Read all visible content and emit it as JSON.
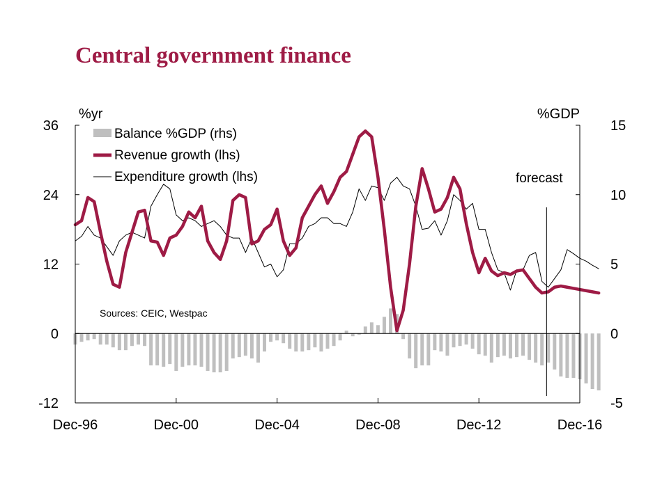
{
  "chart_data": {
    "type": "bar+line",
    "title": "Central government finance",
    "left_axis_unit": "%yr",
    "right_axis_unit": "%GDP",
    "left_ylim": [
      -12,
      36
    ],
    "left_ticks": [
      "-12",
      "0",
      "12",
      "24",
      "36"
    ],
    "right_ylim": [
      -5,
      15
    ],
    "right_ticks": [
      "-5",
      "0",
      "5",
      "10",
      "15"
    ],
    "x_range": [
      1996.917,
      2016.917
    ],
    "x_ticks": [
      {
        "label": "Dec-96",
        "x": 1996.917
      },
      {
        "label": "Dec-00",
        "x": 2000.917
      },
      {
        "label": "Dec-04",
        "x": 2004.917
      },
      {
        "label": "Dec-08",
        "x": 2008.917
      },
      {
        "label": "Dec-12",
        "x": 2012.917
      },
      {
        "label": "Dec-16",
        "x": 2016.917
      }
    ],
    "legend": [
      {
        "key": "balance",
        "label": "Balance %GDP (rhs)"
      },
      {
        "key": "revenue",
        "label": "Revenue growth (lhs)"
      },
      {
        "key": "expenditure",
        "label": "Expenditure growth (lhs)"
      }
    ],
    "annotations": {
      "forecast_label": "forecast",
      "forecast_x": 2015.6,
      "sources": "Sources: CEIC, Westpac"
    },
    "colors": {
      "balance": "#bfbfbf",
      "revenue": "#9e1b45",
      "expenditure": "#000000",
      "title": "#9e1b45"
    },
    "series": [
      {
        "key": "balance",
        "axis": "right",
        "style": "bar",
        "x0": 1996.917,
        "step": 0.25,
        "values": [
          -0.8,
          -0.6,
          -0.5,
          -0.4,
          -0.8,
          -0.8,
          -1.0,
          -1.2,
          -1.2,
          -0.9,
          -0.8,
          -0.9,
          -2.3,
          -2.3,
          -2.4,
          -2.2,
          -2.7,
          -2.4,
          -2.3,
          -2.3,
          -2.4,
          -2.7,
          -2.8,
          -2.8,
          -2.7,
          -1.8,
          -1.7,
          -1.6,
          -1.8,
          -2.1,
          -1.3,
          -0.6,
          -0.5,
          -0.7,
          -1.1,
          -1.3,
          -1.3,
          -1.2,
          -1.0,
          -1.3,
          -1.1,
          -0.9,
          -0.5,
          0.2,
          -0.2,
          -0.1,
          0.5,
          0.8,
          0.6,
          1.2,
          1.8,
          1.4,
          -0.4,
          -1.8,
          -2.5,
          -2.3,
          -2.3,
          -1.2,
          -1.3,
          -1.6,
          -1.0,
          -0.9,
          -0.8,
          -1.1,
          -1.5,
          -1.6,
          -2.1,
          -1.7,
          -1.6,
          -1.8,
          -1.7,
          -1.6,
          -1.9,
          -2.1,
          -2.3,
          -2.1,
          -2.6,
          -3.1,
          -3.2,
          -3.2,
          -3.3,
          -3.6,
          -4.0,
          -4.1
        ]
      },
      {
        "key": "revenue",
        "axis": "left",
        "style": "thick-line",
        "x0": 1996.917,
        "step": 0.25,
        "values": [
          18.8,
          19.5,
          23.5,
          22.8,
          17.5,
          12.5,
          8.5,
          8.0,
          14.0,
          17.5,
          21.0,
          21.3,
          16.0,
          15.8,
          13.5,
          16.5,
          17.0,
          18.5,
          21.0,
          20.0,
          22.0,
          16.0,
          14.0,
          12.8,
          16.0,
          23.0,
          24.0,
          23.5,
          15.5,
          16.0,
          18.0,
          18.8,
          21.5,
          16.0,
          13.5,
          14.8,
          20.0,
          22.0,
          24.0,
          25.5,
          22.5,
          24.5,
          27.0,
          28.0,
          31.0,
          34.0,
          35.0,
          34.0,
          27.0,
          18.0,
          8.0,
          0.5,
          4.0,
          12.0,
          22.0,
          28.5,
          25.0,
          21.0,
          21.5,
          23.5,
          27.0,
          25.0,
          19.0,
          14.0,
          10.5,
          13.0,
          10.8,
          10.0,
          10.5,
          10.2,
          10.8,
          11.0,
          9.5,
          8.0,
          7.0,
          7.2,
          8.0,
          8.2,
          8.0,
          7.8,
          7.6,
          7.4,
          7.2,
          7.0
        ]
      },
      {
        "key": "expenditure",
        "axis": "left",
        "style": "thin-line",
        "x0": 1996.917,
        "step": 0.25,
        "values": [
          16.0,
          16.8,
          18.5,
          17.0,
          16.5,
          15.0,
          13.5,
          16.0,
          17.0,
          17.5,
          17.0,
          16.5,
          22.0,
          24.0,
          25.8,
          25.0,
          20.5,
          19.5,
          20.0,
          19.5,
          18.5,
          19.0,
          19.5,
          18.5,
          17.0,
          16.5,
          16.5,
          14.0,
          16.5,
          14.0,
          11.5,
          12.0,
          9.8,
          11.0,
          15.5,
          15.5,
          16.5,
          18.5,
          19.0,
          20.0,
          20.0,
          19.0,
          19.0,
          18.5,
          21.0,
          25.0,
          23.0,
          25.5,
          25.2,
          23.0,
          26.0,
          27.0,
          25.5,
          25.0,
          22.0,
          18.0,
          18.2,
          19.5,
          17.0,
          19.5,
          24.0,
          23.0,
          21.5,
          22.5,
          18.0,
          18.0,
          14.0,
          11.0,
          10.5,
          7.5,
          11.0,
          11.0,
          13.5,
          14.0,
          9.0,
          8.0,
          9.5,
          11.0,
          14.5,
          13.8,
          13.0,
          12.5,
          11.8,
          11.2
        ]
      }
    ]
  }
}
